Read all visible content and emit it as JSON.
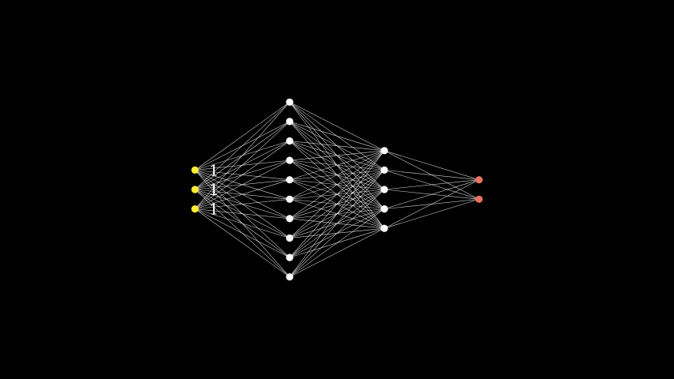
{
  "network": {
    "layers": [
      {
        "name": "input",
        "neurons": 3,
        "color": "#ffee33"
      },
      {
        "name": "hidden-1",
        "neurons": 10,
        "color": "#ffffff"
      },
      {
        "name": "hidden-2",
        "neurons": 5,
        "color": "#ffffff"
      },
      {
        "name": "output",
        "neurons": 2,
        "color": "#f07060"
      }
    ],
    "input_values": [
      "1",
      "1",
      "1"
    ],
    "connections": "fully-connected",
    "edge_color": "#ffffff",
    "background": "#000000"
  }
}
